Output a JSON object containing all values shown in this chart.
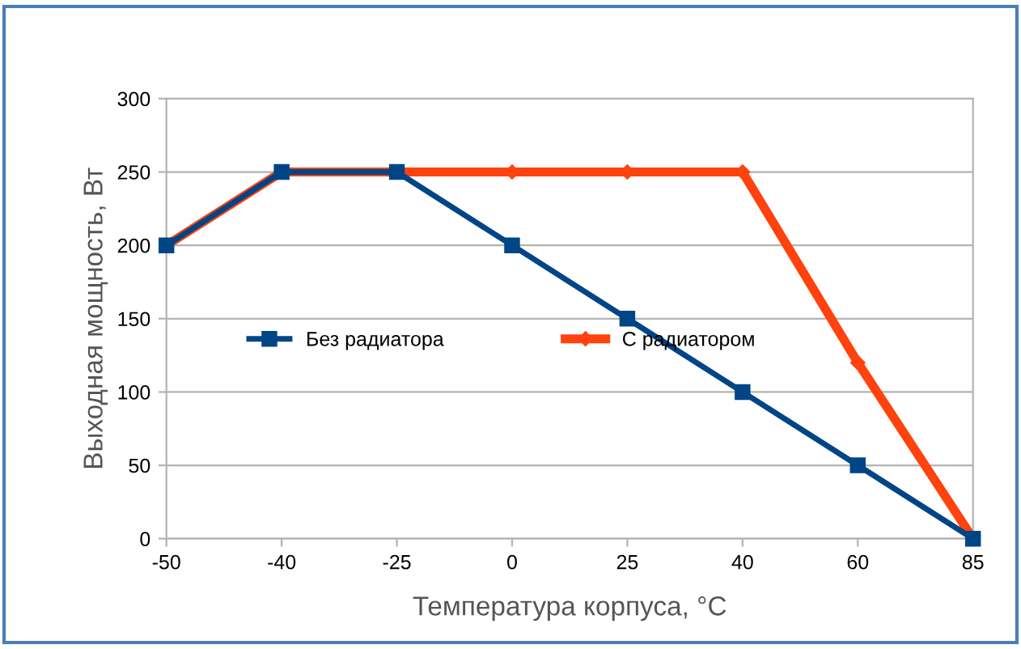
{
  "chart_data": {
    "type": "line",
    "xlabel": "Температура корпуса, °C",
    "ylabel": "Выходная мощность, Вт",
    "categories": [
      "-50",
      "-40",
      "-25",
      "0",
      "25",
      "40",
      "60",
      "85"
    ],
    "series": [
      {
        "name": "Без радиатора",
        "color": "#004586",
        "marker": "square",
        "values": [
          200,
          250,
          250,
          200,
          150,
          100,
          50,
          0
        ]
      },
      {
        "name": "С радиатором",
        "color": "#ff420e",
        "marker": "diamond",
        "values": [
          200,
          250,
          250,
          250,
          250,
          250,
          120,
          0
        ]
      }
    ],
    "ylim": [
      0,
      300
    ],
    "yticks": [
      0,
      50,
      100,
      150,
      200,
      250,
      300
    ],
    "grid": "y",
    "legend": "left",
    "line_style": "solid"
  }
}
